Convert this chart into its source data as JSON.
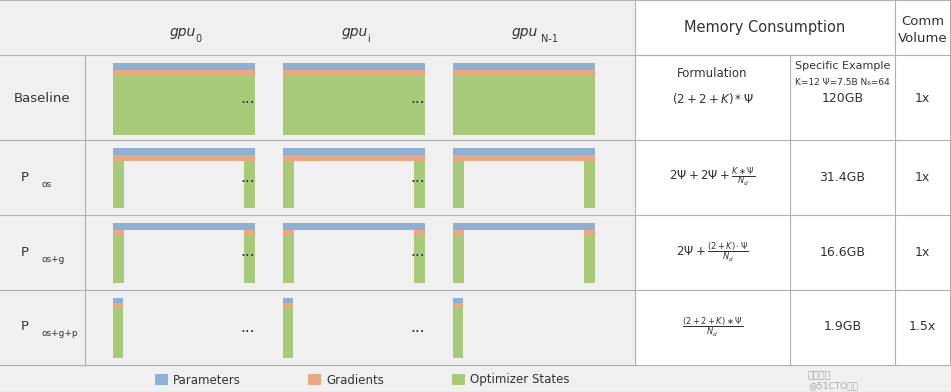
{
  "bg_color": "#f0f0f0",
  "param_color": "#8fafd4",
  "grad_color": "#e8a882",
  "optim_color": "#a8c87a",
  "grid_color": "#b0b0b0",
  "text_color": "#333333",
  "examples": [
    "120GB",
    "31.4GB",
    "16.6GB",
    "1.9GB"
  ],
  "comm_volumes": [
    "1x",
    "1x",
    "1x",
    "1.5x"
  ],
  "legend_labels": [
    "Parameters",
    "Gradients",
    "Optimizer States"
  ]
}
